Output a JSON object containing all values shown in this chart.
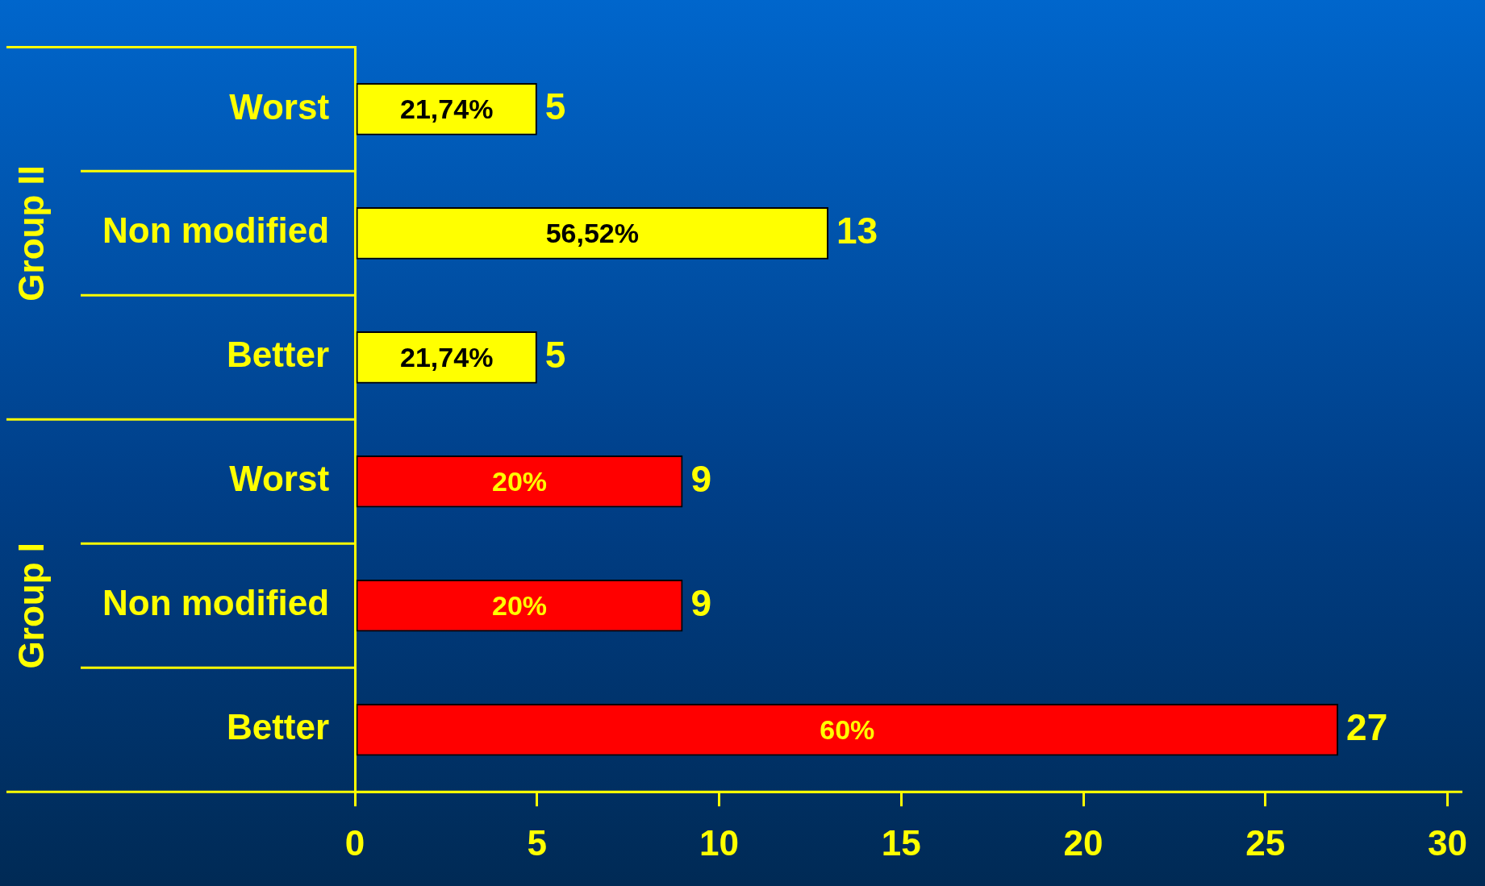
{
  "chart_data": {
    "type": "bar",
    "orientation": "horizontal",
    "categories": [
      "Worst",
      "Non modified",
      "Better",
      "Worst",
      "Non modified",
      "Better"
    ],
    "values": [
      5,
      13,
      5,
      9,
      9,
      27
    ],
    "colors": [
      "#ffff00",
      "#ffff00",
      "#ffff00",
      "#ff0000",
      "#ff0000",
      "#ff0000"
    ],
    "data_labels": true,
    "annotations": [
      "Group II",
      "Group I",
      "21,74%",
      "56,52%",
      "21,74%",
      "20%",
      "20%",
      "60%"
    ],
    "xlim": [
      0,
      30
    ],
    "xticks": [
      0,
      5,
      10,
      15,
      20,
      25,
      30
    ],
    "grid": false,
    "legend": false
  }
}
